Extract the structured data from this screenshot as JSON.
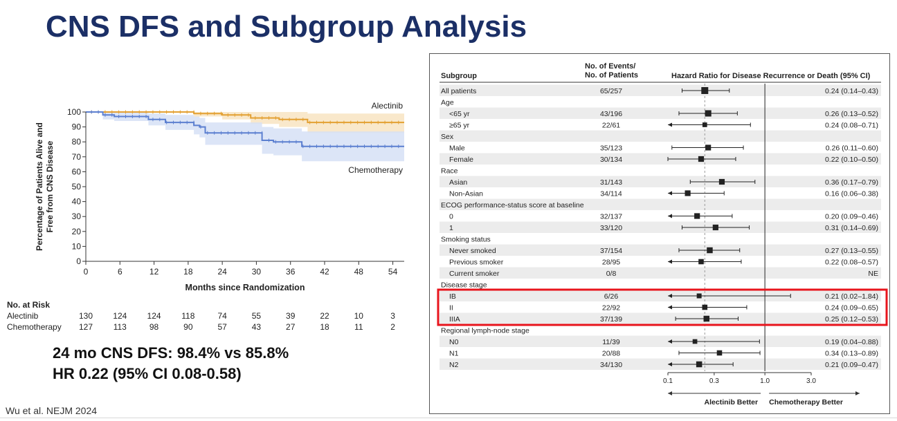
{
  "slide": {
    "title": "CNS DFS and Subgroup Analysis",
    "summary_line1": "24 mo CNS DFS: 98.4% vs 85.8%",
    "summary_line2": "HR 0.22 (95% CI 0.08-0.58)",
    "citation": "Wu et al. NEJM 2024"
  },
  "chart_data": [
    {
      "type": "line",
      "title": "",
      "xlabel": "Months since Randomization",
      "ylabel": "Percentage of Patients Alive and Free from CNS Disease",
      "xlim": [
        0,
        56
      ],
      "ylim": [
        0,
        100
      ],
      "x_ticks": [
        0,
        6,
        12,
        18,
        24,
        30,
        36,
        42,
        48,
        54
      ],
      "y_ticks": [
        0,
        10,
        20,
        30,
        40,
        50,
        60,
        70,
        80,
        90,
        100
      ],
      "grid": false,
      "colors": {
        "Alectinib": "#e3a032",
        "Chemotherapy": "#5b7fd0",
        "Alectinib_band": "#f8e4c2",
        "Chemotherapy_band": "#d6e0f6"
      },
      "series": [
        {
          "name": "Alectinib",
          "label_position": "top-right",
          "x": [
            0,
            11.5,
            19,
            23,
            24,
            28.5,
            29,
            33,
            34,
            38.5,
            39,
            56
          ],
          "values": [
            100,
            100,
            99,
            99,
            98,
            98,
            96,
            96,
            95,
            95,
            93,
            93
          ],
          "ci_upper": [
            100,
            100,
            100,
            100,
            100,
            100,
            100,
            100,
            100,
            100,
            99,
            99
          ],
          "ci_lower": [
            100,
            100,
            97,
            97,
            95,
            95,
            92,
            92,
            90,
            90,
            86,
            86
          ]
        },
        {
          "name": "Chemotherapy",
          "label_position": "right",
          "x": [
            0,
            3,
            5,
            10,
            11,
            13,
            14,
            18,
            19,
            20,
            21,
            22,
            31,
            32,
            33,
            38,
            56
          ],
          "values": [
            100,
            98,
            97,
            97,
            95,
            95,
            93,
            93,
            91,
            90,
            86,
            86,
            81,
            81,
            80,
            77,
            77
          ],
          "ci_upper": [
            100,
            100,
            100,
            100,
            99,
            99,
            98,
            98,
            97,
            96,
            93,
            93,
            90,
            90,
            89,
            87,
            87
          ],
          "ci_lower": [
            100,
            95,
            94,
            94,
            91,
            91,
            88,
            88,
            85,
            83,
            78,
            78,
            72,
            72,
            71,
            67,
            67
          ]
        }
      ],
      "risk_table": {
        "title": "No. at Risk",
        "time_points": [
          0,
          6,
          12,
          18,
          24,
          30,
          36,
          42,
          48,
          54
        ],
        "rows": [
          {
            "label": "Alectinib",
            "values": [
              "130",
              "124",
              "124",
              "118",
              "74",
              "55",
              "39",
              "22",
              "10",
              "3"
            ]
          },
          {
            "label": "Chemotherapy",
            "values": [
              "127",
              "113",
              "98",
              "90",
              "57",
              "43",
              "27",
              "18",
              "11",
              "2"
            ]
          }
        ]
      }
    },
    {
      "type": "forest",
      "headers": {
        "subgroup": "Subgroup",
        "events_line1": "No. of Events/",
        "events_line2": "No. of Patients",
        "hr": "Hazard Ratio for Disease Recurrence or Death (95% CI)"
      },
      "x_scale": "log",
      "x_ticks": [
        0.1,
        0.3,
        1.0,
        3.0
      ],
      "x_tick_labels": [
        "0.1",
        "0.3",
        "1.0",
        "3.0"
      ],
      "xlim": [
        0.1,
        3.0
      ],
      "overall_hr": 0.24,
      "favors_left": "Alectinib Better",
      "favors_right": "Chemotherapy Better",
      "highlight": {
        "group": "Disease stage",
        "color": "#e8141c"
      },
      "rows": [
        {
          "label": "All patients",
          "indent": 0,
          "events": "65/257",
          "hr": 0.24,
          "lo": 0.14,
          "hi": 0.43,
          "text": "0.24 (0.14–0.43)",
          "size": 1.0
        },
        {
          "label": "Age",
          "indent": 0,
          "header": true
        },
        {
          "label": "<65 yr",
          "indent": 1,
          "events": "43/196",
          "hr": 0.26,
          "lo": 0.13,
          "hi": 0.52,
          "text": "0.26 (0.13–0.52)",
          "size": 0.85
        },
        {
          "label": "≥65 yr",
          "indent": 1,
          "events": "22/61",
          "hr": 0.24,
          "lo": 0.08,
          "hi": 0.71,
          "text": "0.24 (0.08–0.71)",
          "size": 0.45
        },
        {
          "label": "Sex",
          "indent": 0,
          "header": true
        },
        {
          "label": "Male",
          "indent": 1,
          "events": "35/123",
          "hr": 0.26,
          "lo": 0.11,
          "hi": 0.6,
          "text": "0.26 (0.11–0.60)",
          "size": 0.7
        },
        {
          "label": "Female",
          "indent": 1,
          "events": "30/134",
          "hr": 0.22,
          "lo": 0.1,
          "hi": 0.5,
          "text": "0.22 (0.10–0.50)",
          "size": 0.7
        },
        {
          "label": "Race",
          "indent": 0,
          "header": true
        },
        {
          "label": "Asian",
          "indent": 1,
          "events": "31/143",
          "hr": 0.36,
          "lo": 0.17,
          "hi": 0.79,
          "text": "0.36 (0.17–0.79)",
          "size": 0.7
        },
        {
          "label": "Non-Asian",
          "indent": 1,
          "events": "34/114",
          "hr": 0.16,
          "lo": 0.06,
          "hi": 0.38,
          "text": "0.16 (0.06–0.38)",
          "size": 0.7
        },
        {
          "label": "ECOG performance-status score at baseline",
          "indent": 0,
          "header": true
        },
        {
          "label": "0",
          "indent": 1,
          "events": "32/137",
          "hr": 0.2,
          "lo": 0.09,
          "hi": 0.46,
          "text": "0.20 (0.09–0.46)",
          "size": 0.7
        },
        {
          "label": "1",
          "indent": 1,
          "events": "33/120",
          "hr": 0.31,
          "lo": 0.14,
          "hi": 0.69,
          "text": "0.31 (0.14–0.69)",
          "size": 0.7
        },
        {
          "label": "Smoking status",
          "indent": 0,
          "header": true
        },
        {
          "label": "Never smoked",
          "indent": 1,
          "events": "37/154",
          "hr": 0.27,
          "lo": 0.13,
          "hi": 0.55,
          "text": "0.27 (0.13–0.55)",
          "size": 0.75
        },
        {
          "label": "Previous smoker",
          "indent": 1,
          "events": "28/95",
          "hr": 0.22,
          "lo": 0.08,
          "hi": 0.57,
          "text": "0.22 (0.08–0.57)",
          "size": 0.6
        },
        {
          "label": "Current smoker",
          "indent": 1,
          "events": "0/8",
          "text": "NE"
        },
        {
          "label": "Disease stage",
          "indent": 0,
          "header": true
        },
        {
          "label": "IB",
          "indent": 1,
          "events": "6/26",
          "hr": 0.21,
          "lo": 0.02,
          "hi": 1.84,
          "text": "0.21 (0.02–1.84)",
          "size": 0.5
        },
        {
          "label": "II",
          "indent": 1,
          "events": "22/92",
          "hr": 0.24,
          "lo": 0.09,
          "hi": 0.65,
          "text": "0.24 (0.09–0.65)",
          "size": 0.6
        },
        {
          "label": "IIIA",
          "indent": 1,
          "events": "37/139",
          "hr": 0.25,
          "lo": 0.12,
          "hi": 0.53,
          "text": "0.25 (0.12–0.53)",
          "size": 0.75
        },
        {
          "label": "Regional lymph-node stage",
          "indent": 0,
          "header": true
        },
        {
          "label": "N0",
          "indent": 1,
          "events": "11/39",
          "hr": 0.19,
          "lo": 0.04,
          "hi": 0.88,
          "text": "0.19 (0.04–0.88)",
          "size": 0.45
        },
        {
          "label": "N1",
          "indent": 1,
          "events": "20/88",
          "hr": 0.34,
          "lo": 0.13,
          "hi": 0.89,
          "text": "0.34 (0.13–0.89)",
          "size": 0.6
        },
        {
          "label": "N2",
          "indent": 1,
          "events": "34/130",
          "hr": 0.21,
          "lo": 0.09,
          "hi": 0.47,
          "text": "0.21 (0.09–0.47)",
          "size": 0.75
        }
      ]
    }
  ]
}
